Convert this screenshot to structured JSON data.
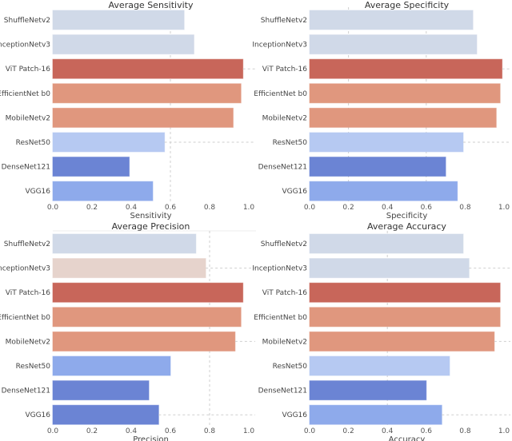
{
  "chart_data": [
    {
      "type": "bar",
      "orientation": "horizontal",
      "title": "Average Sensitivity",
      "xlabel": "Sensitivity",
      "ylabel": "",
      "xlim": [
        0,
        1.0
      ],
      "xticks": [
        "0.0",
        "0.2",
        "0.4",
        "0.6",
        "0.8",
        "1.0"
      ],
      "categories": [
        "ShuffleNetv2",
        "InceptionNetv3",
        "ViT Patch-16",
        "EfficientNet b0",
        "MobileNetv2",
        "ResNet50",
        "DenseNet121",
        "VGG16"
      ],
      "values": [
        0.67,
        0.72,
        0.97,
        0.96,
        0.92,
        0.57,
        0.39,
        0.51
      ],
      "colors": [
        "#d0d9e8",
        "#d0d9e8",
        "#c8665a",
        "#e0977e",
        "#e0977e",
        "#b6c9f2",
        "#6b84d4",
        "#8eaaeb"
      ],
      "grid": {
        "x": [
          0.6
        ],
        "y_rows": [
          2,
          5
        ]
      }
    },
    {
      "type": "bar",
      "orientation": "horizontal",
      "title": "Average Specificity",
      "xlabel": "Specificity",
      "ylabel": "",
      "xlim": [
        0,
        1.0
      ],
      "xticks": [
        "0.0",
        "0.2",
        "0.4",
        "0.6",
        "0.8",
        "1.0"
      ],
      "categories": [
        "ShuffleNetv2",
        "InceptionNetv3",
        "ViT Patch-16",
        "EfficientNet b0",
        "MobileNetv2",
        "ResNet50",
        "DenseNet121",
        "VGG16"
      ],
      "values": [
        0.84,
        0.86,
        0.99,
        0.98,
        0.96,
        0.79,
        0.7,
        0.76
      ],
      "colors": [
        "#d0d9e8",
        "#d0d9e8",
        "#c8665a",
        "#e0977e",
        "#e0977e",
        "#b6c9f2",
        "#6b84d4",
        "#8eaaeb"
      ],
      "grid": {
        "x": [
          0.2,
          0.6
        ],
        "y_rows": [
          2,
          5
        ]
      }
    },
    {
      "type": "bar",
      "orientation": "horizontal",
      "title": "Average Precision",
      "xlabel": "Precision",
      "ylabel": "",
      "xlim": [
        0,
        1.0
      ],
      "xticks": [
        "0.0",
        "0.2",
        "0.4",
        "0.6",
        "0.8",
        "1.0"
      ],
      "categories": [
        "ShuffleNetv2",
        "InceptionNetv3",
        "ViT Patch-16",
        "EfficientNet b0",
        "MobileNetv2",
        "ResNet50",
        "DenseNet121",
        "VGG16"
      ],
      "values": [
        0.73,
        0.78,
        0.97,
        0.96,
        0.93,
        0.6,
        0.49,
        0.54
      ],
      "colors": [
        "#d0d9e8",
        "#e6d3cc",
        "#c8665a",
        "#e0977e",
        "#e0977e",
        "#8eaaeb",
        "#6b84d4",
        "#6b84d4"
      ],
      "grid": {
        "x": [
          0.8
        ],
        "y_rows": [
          1,
          4,
          7
        ]
      }
    },
    {
      "type": "bar",
      "orientation": "horizontal",
      "title": "Average Accuracy",
      "xlabel": "Accuracy",
      "ylabel": "",
      "xlim": [
        0,
        1.0
      ],
      "xticks": [
        "0.0",
        "0.2",
        "0.4",
        "0.6",
        "0.8",
        "1.0"
      ],
      "categories": [
        "ShuffleNetv2",
        "InceptionNetv3",
        "ViT Patch-16",
        "EfficientNet b0",
        "MobileNetv2",
        "ResNet50",
        "DenseNet121",
        "VGG16"
      ],
      "values": [
        0.79,
        0.82,
        0.98,
        0.98,
        0.95,
        0.72,
        0.6,
        0.68
      ],
      "colors": [
        "#d0d9e8",
        "#d0d9e8",
        "#c8665a",
        "#e0977e",
        "#e0977e",
        "#b6c9f2",
        "#6b84d4",
        "#8eaaeb"
      ],
      "grid": {
        "x": [
          0.4
        ],
        "y_rows": [
          1,
          4,
          7
        ]
      }
    }
  ]
}
